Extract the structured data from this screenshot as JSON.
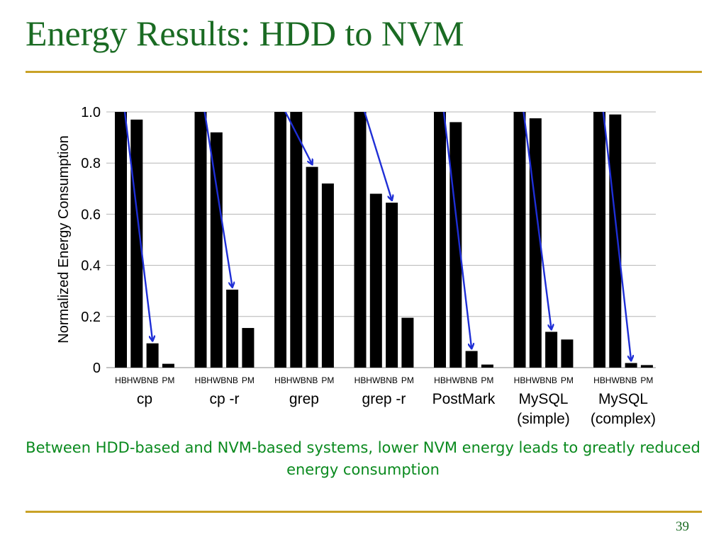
{
  "slide": {
    "title": "Energy Results: HDD to NVM",
    "caption": "Between HDD-based and NVM-based systems, lower NVM energy leads to greatly reduced energy consumption",
    "page_number": "39"
  },
  "colors": {
    "title": "#1a6b23",
    "rule": "#c9a227",
    "caption": "#0a8a1e",
    "bars": "#000000",
    "arrows": "#1f2fd6",
    "grid": "#b5b5b5"
  },
  "chart_data": {
    "type": "bar",
    "ylabel": "Normalized Energy Consumption",
    "ylim": [
      0,
      1.0
    ],
    "yticks": [
      "0",
      "0.2",
      "0.4",
      "0.6",
      "0.8",
      "1.0"
    ],
    "grid": true,
    "categories": [
      {
        "name": [
          "cp"
        ]
      },
      {
        "name": [
          "cp -r"
        ]
      },
      {
        "name": [
          "grep"
        ]
      },
      {
        "name": [
          "grep -r"
        ]
      },
      {
        "name": [
          "PostMark"
        ]
      },
      {
        "name": [
          "MySQL",
          "(simple)"
        ]
      },
      {
        "name": [
          "MySQL",
          "(complex)"
        ]
      }
    ],
    "bar_labels": [
      "HB",
      "HWB",
      "NB",
      "PM"
    ],
    "series": [
      {
        "name": "HB",
        "values": [
          1.0,
          1.0,
          1.0,
          1.0,
          1.0,
          1.0,
          1.0
        ]
      },
      {
        "name": "HWB",
        "values": [
          0.97,
          0.92,
          1.0,
          0.68,
          0.96,
          0.975,
          0.99
        ]
      },
      {
        "name": "NB",
        "values": [
          0.095,
          0.305,
          0.785,
          0.645,
          0.065,
          0.14,
          0.018
        ]
      },
      {
        "name": "PM",
        "values": [
          0.015,
          0.155,
          0.72,
          0.195,
          0.012,
          0.11,
          0.01
        ]
      }
    ],
    "annotations": "Arrows from HB bar to NB bar in every group"
  }
}
